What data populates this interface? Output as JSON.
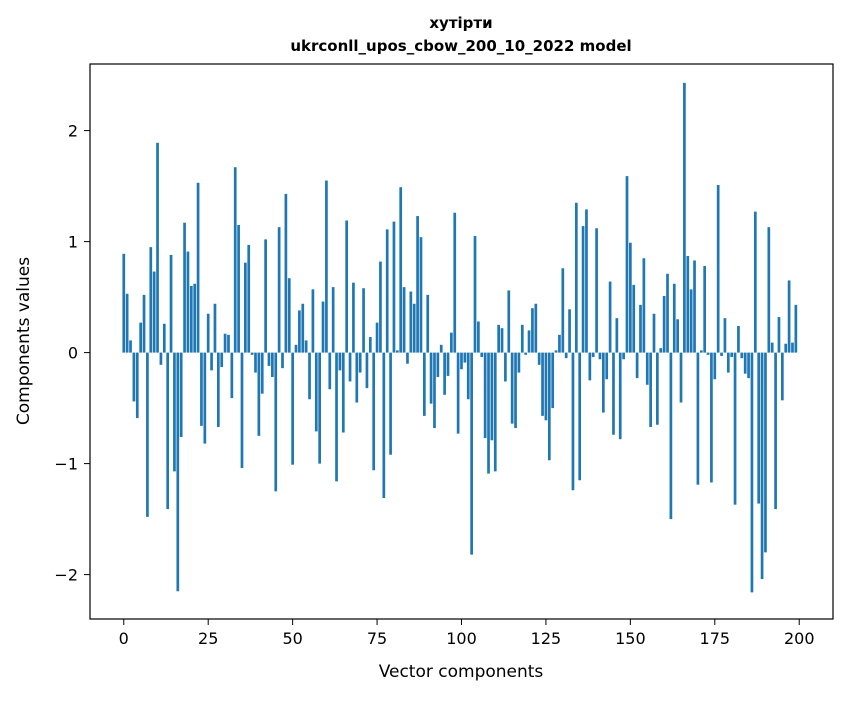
{
  "chart_data": {
    "type": "bar",
    "title": "хутірти",
    "subtitle": "ukrconll_upos_cbow_200_10_2022 model",
    "xlabel": "Vector components",
    "ylabel": "Components values",
    "xlim": [
      -10,
      210
    ],
    "ylim": [
      -2.4,
      2.6
    ],
    "xticks": [
      0,
      25,
      50,
      75,
      100,
      125,
      150,
      175,
      200
    ],
    "yticks": [
      -2,
      -1,
      0,
      1,
      2
    ],
    "ytick_labels": [
      "−2",
      "−1",
      "0",
      "1",
      "2"
    ],
    "grid": false,
    "bar_color": "#1f77b4",
    "x": [
      0,
      1,
      2,
      3,
      4,
      5,
      6,
      7,
      8,
      9,
      10,
      11,
      12,
      13,
      14,
      15,
      16,
      17,
      18,
      19,
      20,
      21,
      22,
      23,
      24,
      25,
      26,
      27,
      28,
      29,
      30,
      31,
      32,
      33,
      34,
      35,
      36,
      37,
      38,
      39,
      40,
      41,
      42,
      43,
      44,
      45,
      46,
      47,
      48,
      49,
      50,
      51,
      52,
      53,
      54,
      55,
      56,
      57,
      58,
      59,
      60,
      61,
      62,
      63,
      64,
      65,
      66,
      67,
      68,
      69,
      70,
      71,
      72,
      73,
      74,
      75,
      76,
      77,
      78,
      79,
      80,
      81,
      82,
      83,
      84,
      85,
      86,
      87,
      88,
      89,
      90,
      91,
      92,
      93,
      94,
      95,
      96,
      97,
      98,
      99,
      100,
      101,
      102,
      103,
      104,
      105,
      106,
      107,
      108,
      109,
      110,
      111,
      112,
      113,
      114,
      115,
      116,
      117,
      118,
      119,
      120,
      121,
      122,
      123,
      124,
      125,
      126,
      127,
      128,
      129,
      130,
      131,
      132,
      133,
      134,
      135,
      136,
      137,
      138,
      139,
      140,
      141,
      142,
      143,
      144,
      145,
      146,
      147,
      148,
      149,
      150,
      151,
      152,
      153,
      154,
      155,
      156,
      157,
      158,
      159,
      160,
      161,
      162,
      163,
      164,
      165,
      166,
      167,
      168,
      169,
      170,
      171,
      172,
      173,
      174,
      175,
      176,
      177,
      178,
      179,
      180,
      181,
      182,
      183,
      184,
      185,
      186,
      187,
      188,
      189,
      190,
      191,
      192,
      193,
      194,
      195,
      196,
      197,
      198,
      199
    ],
    "values": [
      0.89,
      0.53,
      0.11,
      -0.44,
      -0.59,
      0.27,
      0.52,
      -1.48,
      0.95,
      0.73,
      1.89,
      -0.11,
      0.26,
      -1.41,
      0.88,
      -1.07,
      -2.15,
      -0.76,
      1.17,
      0.91,
      0.6,
      0.62,
      1.53,
      -0.66,
      -0.82,
      0.35,
      -0.16,
      0.44,
      -0.67,
      -0.13,
      0.17,
      0.16,
      -0.41,
      1.67,
      1.15,
      -1.04,
      0.81,
      0.97,
      -0.02,
      -0.18,
      -0.75,
      -0.37,
      1.02,
      -0.12,
      -0.22,
      -1.25,
      1.13,
      -0.14,
      1.43,
      0.67,
      -1.01,
      0.07,
      0.38,
      0.44,
      0.11,
      -0.42,
      0.57,
      -0.71,
      -1.0,
      0.46,
      1.55,
      -0.33,
      0.59,
      -1.16,
      -0.16,
      -0.72,
      1.19,
      -0.26,
      0.63,
      -0.45,
      -0.18,
      0.58,
      -0.32,
      0.14,
      -1.06,
      0.27,
      0.82,
      -1.31,
      1.11,
      -0.92,
      1.18,
      0.02,
      1.49,
      0.59,
      -0.1,
      0.55,
      0.44,
      1.23,
      1.04,
      -0.57,
      0.52,
      -0.46,
      -0.68,
      -0.22,
      0.07,
      -0.38,
      -0.21,
      0.18,
      1.26,
      -0.73,
      -0.15,
      -0.09,
      -0.42,
      -1.82,
      1.05,
      0.28,
      -0.04,
      -0.77,
      -1.09,
      -0.79,
      -1.07,
      0.25,
      0.22,
      -0.26,
      0.56,
      -0.64,
      -0.68,
      -0.18,
      0.25,
      -0.02,
      0.2,
      0.4,
      0.44,
      -0.11,
      -0.57,
      -0.61,
      -0.97,
      -0.5,
      0.02,
      0.16,
      0.76,
      -0.05,
      0.39,
      -1.24,
      1.35,
      -1.15,
      1.14,
      1.29,
      -0.25,
      -0.04,
      1.12,
      -0.06,
      -0.54,
      -0.24,
      0.64,
      -0.74,
      0.31,
      -0.78,
      -0.06,
      1.59,
      0.99,
      0.61,
      -0.23,
      0.43,
      0.85,
      -0.29,
      -0.67,
      0.35,
      -0.65,
      0.04,
      0.51,
      0.71,
      -1.5,
      0.62,
      0.3,
      -0.45,
      2.43,
      0.87,
      0.57,
      0.83,
      -1.19,
      0.02,
      0.78,
      -0.02,
      -1.17,
      -0.24,
      1.51,
      -0.03,
      0.31,
      -0.18,
      -0.04,
      -1.37,
      0.24,
      -0.05,
      -0.19,
      -0.23,
      -2.16,
      1.27,
      -1.36,
      -2.04,
      -1.8,
      1.13,
      0.09,
      -1.41,
      0.32,
      -0.43,
      0.08,
      0.65,
      0.09,
      0.43
    ]
  }
}
